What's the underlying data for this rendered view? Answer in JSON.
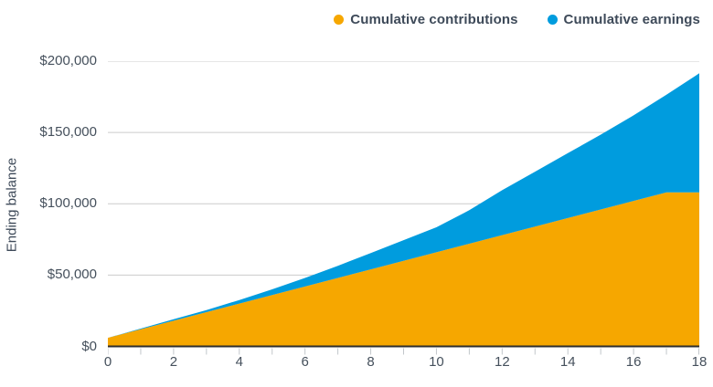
{
  "chart_data": {
    "type": "area",
    "stacked": true,
    "title": "",
    "xlabel": "",
    "ylabel": "Ending balance",
    "x": [
      0,
      1,
      2,
      3,
      4,
      5,
      6,
      7,
      8,
      9,
      10,
      11,
      12,
      13,
      14,
      15,
      16,
      17,
      18
    ],
    "xlim": [
      0,
      18
    ],
    "ylim": [
      0,
      200000
    ],
    "y_ticks": [
      {
        "value": 0,
        "label": "$0"
      },
      {
        "value": 50000,
        "label": "$50,000"
      },
      {
        "value": 100000,
        "label": "$100,000"
      },
      {
        "value": 150000,
        "label": "$150,000"
      },
      {
        "value": 200000,
        "label": "$200,000"
      }
    ],
    "x_minor_ticks": [
      0,
      1,
      2,
      3,
      4,
      5,
      6,
      7,
      8,
      9,
      10,
      11,
      12,
      13,
      14,
      15,
      16,
      17,
      18
    ],
    "x_labels": [
      {
        "value": 0,
        "label": "0"
      },
      {
        "value": 2,
        "label": "2"
      },
      {
        "value": 4,
        "label": "4"
      },
      {
        "value": 6,
        "label": "6"
      },
      {
        "value": 8,
        "label": "8"
      },
      {
        "value": 10,
        "label": "10"
      },
      {
        "value": 12,
        "label": "12"
      },
      {
        "value": 14,
        "label": "14"
      },
      {
        "value": 16,
        "label": "16"
      },
      {
        "value": 18,
        "label": "18"
      }
    ],
    "grid": "horizontal",
    "legend_position": "top-right",
    "series": [
      {
        "name": "Cumulative contributions",
        "color": "#F6A700",
        "values": [
          6000,
          12000,
          18000,
          24000,
          30000,
          36000,
          42000,
          48000,
          54000,
          60000,
          66000,
          72000,
          78000,
          84000,
          90000,
          96000,
          102000,
          108000,
          108000
        ]
      },
      {
        "name": "Cumulative earnings",
        "color": "#009CDE",
        "values": [
          0,
          500,
          1000,
          1500,
          2500,
          4000,
          6000,
          8500,
          11500,
          14500,
          17500,
          23500,
          31500,
          38500,
          45500,
          52500,
          60000,
          68500,
          83500
        ]
      }
    ],
    "totals": [
      6000,
      12500,
      19000,
      25500,
      32500,
      40000,
      48000,
      56500,
      65500,
      74500,
      83500,
      95500,
      109500,
      122500,
      135500,
      148500,
      162000,
      176500,
      191500
    ],
    "colors": {
      "grid_line": "#CCCCCC",
      "axis_line": "#2E2E2E",
      "tick_mark": "#C2C7CB",
      "text": "#3E4A59"
    }
  }
}
